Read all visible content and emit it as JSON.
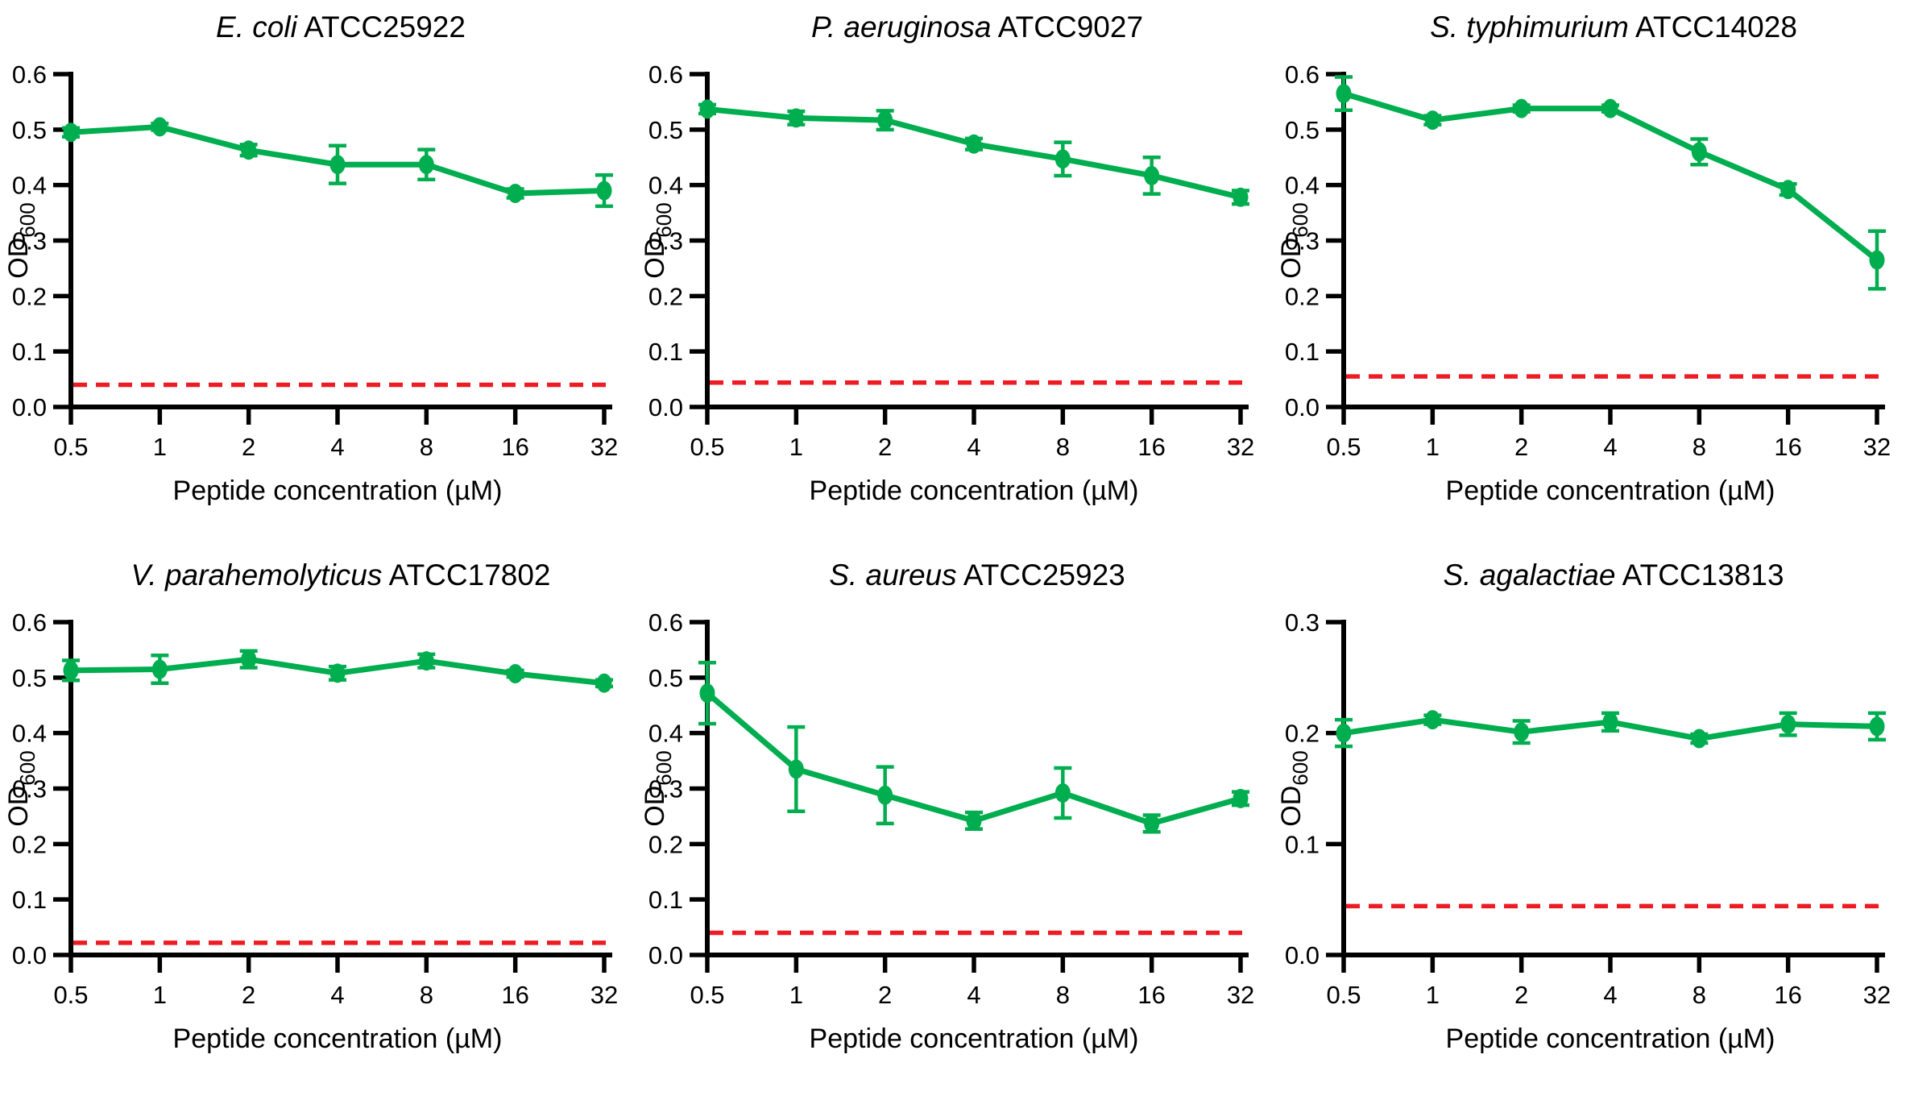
{
  "figure": {
    "background": "#ffffff",
    "series_color": "#00AD4F",
    "control_color": "#ED1C24",
    "axis_color": "#000000"
  },
  "chart_data": [
    {
      "type": "line",
      "title_italic": "E. coli",
      "title_regular": "ATCC25922",
      "categories": [
        "0.5",
        "1",
        "2",
        "4",
        "8",
        "16",
        "32"
      ],
      "x_scale": "log2",
      "values": [
        0.495,
        0.505,
        0.463,
        0.437,
        0.437,
        0.385,
        0.39
      ],
      "errors": [
        0.008,
        0.006,
        0.01,
        0.034,
        0.027,
        0.008,
        0.028
      ],
      "control_line": 0.04,
      "ylim": [
        0,
        0.6
      ],
      "y_ticks": [
        0,
        0.1,
        0.2,
        0.3,
        0.4,
        0.5,
        0.6
      ],
      "y_tick_labels": [
        "0.0",
        "0.1",
        "0.2",
        "0.3",
        "0.4",
        "0.5",
        "0.6"
      ],
      "xlabel": "Peptide concentration (µM)",
      "ylabel_base": "OD",
      "ylabel_sub": "600",
      "legend": "none",
      "grid": false
    },
    {
      "type": "line",
      "title_italic": "P. aeruginosa",
      "title_regular": "ATCC9027",
      "categories": [
        "0.5",
        "1",
        "2",
        "4",
        "8",
        "16",
        "32"
      ],
      "x_scale": "log2",
      "values": [
        0.537,
        0.521,
        0.517,
        0.474,
        0.447,
        0.417,
        0.378
      ],
      "errors": [
        0.008,
        0.012,
        0.017,
        0.01,
        0.03,
        0.033,
        0.012
      ],
      "control_line": 0.044,
      "ylim": [
        0,
        0.6
      ],
      "y_ticks": [
        0,
        0.1,
        0.2,
        0.3,
        0.4,
        0.5,
        0.6
      ],
      "y_tick_labels": [
        "0.0",
        "0.1",
        "0.2",
        "0.3",
        "0.4",
        "0.5",
        "0.6"
      ],
      "xlabel": "Peptide concentration (µM)",
      "ylabel_base": "OD",
      "ylabel_sub": "600",
      "legend": "none",
      "grid": false
    },
    {
      "type": "line",
      "title_italic": "S. typhimurium",
      "title_regular": "ATCC14028",
      "categories": [
        "0.5",
        "1",
        "2",
        "4",
        "8",
        "16",
        "32"
      ],
      "x_scale": "log2",
      "values": [
        0.565,
        0.517,
        0.538,
        0.538,
        0.46,
        0.392,
        0.265
      ],
      "errors": [
        0.03,
        0.008,
        0.006,
        0.006,
        0.023,
        0.01,
        0.052
      ],
      "control_line": 0.055,
      "ylim": [
        0,
        0.6
      ],
      "y_ticks": [
        0,
        0.1,
        0.2,
        0.3,
        0.4,
        0.5,
        0.6
      ],
      "y_tick_labels": [
        "0.0",
        "0.1",
        "0.2",
        "0.3",
        "0.4",
        "0.5",
        "0.6"
      ],
      "xlabel": "Peptide concentration (µM)",
      "ylabel_base": "OD",
      "ylabel_sub": "600",
      "legend": "none",
      "grid": false
    },
    {
      "type": "line",
      "title_italic": "V. parahemolyticus",
      "title_regular": "ATCC17802",
      "categories": [
        "0.5",
        "1",
        "2",
        "4",
        "8",
        "16",
        "32"
      ],
      "x_scale": "log2",
      "values": [
        0.513,
        0.515,
        0.533,
        0.508,
        0.53,
        0.507,
        0.49
      ],
      "errors": [
        0.018,
        0.025,
        0.015,
        0.012,
        0.012,
        0.006,
        0.006
      ],
      "control_line": 0.022,
      "ylim": [
        0,
        0.6
      ],
      "y_ticks": [
        0,
        0.1,
        0.2,
        0.3,
        0.4,
        0.5,
        0.6
      ],
      "y_tick_labels": [
        "0.0",
        "0.1",
        "0.2",
        "0.3",
        "0.4",
        "0.5",
        "0.6"
      ],
      "xlabel": "Peptide concentration (µM)",
      "ylabel_base": "OD",
      "ylabel_sub": "600",
      "legend": "none",
      "grid": false
    },
    {
      "type": "line",
      "title_italic": "S. aureus",
      "title_regular": "ATCC25923",
      "categories": [
        "0.5",
        "1",
        "2",
        "4",
        "8",
        "16",
        "32"
      ],
      "x_scale": "log2",
      "values": [
        0.472,
        0.335,
        0.288,
        0.242,
        0.292,
        0.237,
        0.282
      ],
      "errors": [
        0.055,
        0.076,
        0.051,
        0.015,
        0.045,
        0.015,
        0.012
      ],
      "control_line": 0.04,
      "ylim": [
        0,
        0.6
      ],
      "y_ticks": [
        0,
        0.1,
        0.2,
        0.3,
        0.4,
        0.5,
        0.6
      ],
      "y_tick_labels": [
        "0.0",
        "0.1",
        "0.2",
        "0.3",
        "0.4",
        "0.5",
        "0.6"
      ],
      "xlabel": "Peptide concentration (µM)",
      "ylabel_base": "OD",
      "ylabel_sub": "600",
      "legend": "none",
      "grid": false
    },
    {
      "type": "line",
      "title_italic": "S. agalactiae",
      "title_regular": "ATCC13813",
      "categories": [
        "0.5",
        "1",
        "2",
        "4",
        "8",
        "16",
        "32"
      ],
      "x_scale": "log2",
      "values": [
        0.2,
        0.212,
        0.201,
        0.21,
        0.195,
        0.208,
        0.206
      ],
      "errors": [
        0.012,
        0.004,
        0.01,
        0.008,
        0.004,
        0.01,
        0.012
      ],
      "control_line": 0.044,
      "ylim": [
        0,
        0.3
      ],
      "y_ticks": [
        0,
        0.1,
        0.2,
        0.3
      ],
      "y_tick_labels": [
        "0.0",
        "0.1",
        "0.2",
        "0.3"
      ],
      "xlabel": "Peptide concentration (µM)",
      "ylabel_base": "OD",
      "ylabel_sub": "600",
      "legend": "none",
      "grid": false
    }
  ]
}
